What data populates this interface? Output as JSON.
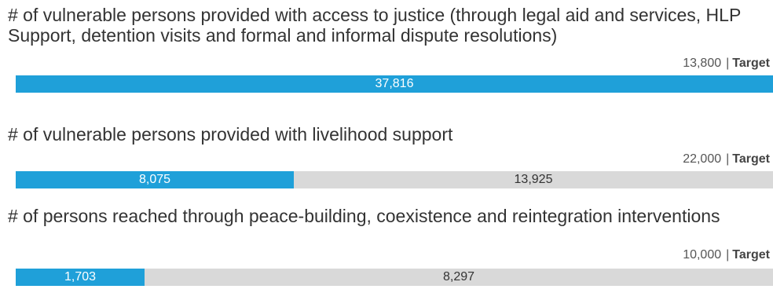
{
  "colors": {
    "achieved": "#1fa0d9",
    "remaining": "#d9d9d9"
  },
  "chart_data": {
    "type": "bar",
    "orientation": "horizontal",
    "stacked": true,
    "target_label": "Target",
    "indicators": [
      {
        "title": "# of vulnerable persons provided with access to justice (through legal aid and services, HLP Support, detention visits and formal and informal dispute resolutions)",
        "target": 13800,
        "target_text": "13,800",
        "achieved": 37816,
        "achieved_text": "37,816",
        "remaining": 0,
        "remaining_text": ""
      },
      {
        "title": "# of vulnerable persons provided with livelihood support",
        "target": 22000,
        "target_text": "22,000",
        "achieved": 8075,
        "achieved_text": "8,075",
        "remaining": 13925,
        "remaining_text": "13,925"
      },
      {
        "title": "# of persons reached through peace-building, coexistence and reintegration interventions",
        "target": 10000,
        "target_text": "10,000",
        "achieved": 1703,
        "achieved_text": "1,703",
        "remaining": 8297,
        "remaining_text": "8,297"
      }
    ]
  }
}
